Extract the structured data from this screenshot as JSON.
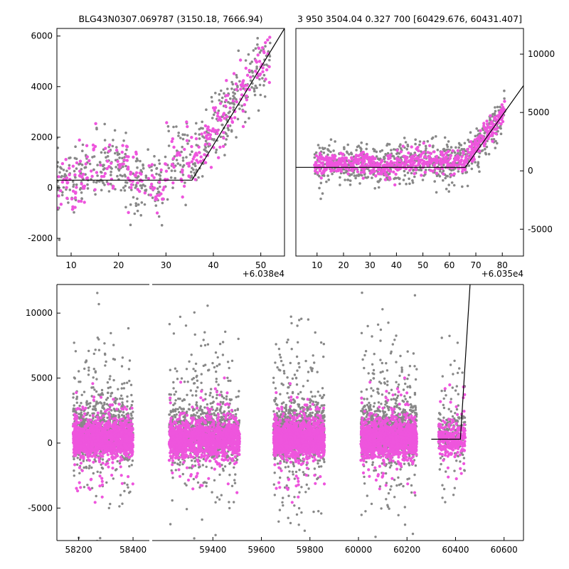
{
  "chart_data": [
    {
      "type": "scatter",
      "title": "BLG43N0307.069787 (3150.18, 7666.94)",
      "xlim": [
        7,
        55
      ],
      "ylim": [
        -2700,
        6300
      ],
      "x_offset_label": "+6.038e4",
      "xticks": [
        10,
        20,
        30,
        40,
        50
      ],
      "yticks": [
        -2000,
        0,
        2000,
        4000,
        6000
      ],
      "y_axis_side": "left",
      "series": [
        {
          "color": "#888888",
          "x_range": [
            7,
            52
          ],
          "points_note": "gray photometry"
        },
        {
          "color": "#ee55dd",
          "x_range": [
            7,
            52
          ],
          "points_note": "pink photometry"
        }
      ],
      "model_line": {
        "x": [
          7,
          35.5,
          55
        ],
        "y": [
          300,
          300,
          6300
        ]
      }
    },
    {
      "type": "scatter",
      "title": "3 950 3504.04 0.327 700 [60429.676, 60431.407]",
      "xlim": [
        2,
        88
      ],
      "ylim": [
        -7300,
        12200
      ],
      "x_offset_label": "+6.035e4",
      "xticks": [
        10,
        20,
        30,
        40,
        50,
        60,
        70,
        80
      ],
      "yticks": [
        -5000,
        0,
        5000,
        10000
      ],
      "y_axis_side": "right",
      "model_line": {
        "x": [
          2,
          66,
          88
        ],
        "y": [
          300,
          300,
          7300
        ]
      }
    },
    {
      "type": "scatter",
      "title": "",
      "xlim": [
        58120,
        60680
      ],
      "ylim": [
        -7500,
        12200
      ],
      "xticks": [
        58200,
        58400,
        59400,
        59600,
        59800,
        60000,
        60200,
        60400,
        60600
      ],
      "yticks": [
        -5000,
        0,
        5000,
        10000
      ],
      "y_axis_side": "left",
      "broken_axis": {
        "left_segment": [
          58120,
          58460
        ],
        "right_segment": [
          59150,
          60680
        ]
      },
      "seasons": [
        {
          "x_range": [
            58180,
            58400
          ]
        },
        {
          "x_range": [
            59220,
            59510
          ]
        },
        {
          "x_range": [
            59650,
            59860
          ]
        },
        {
          "x_range": [
            60010,
            60240
          ]
        },
        {
          "x_range": [
            60330,
            60440
          ]
        }
      ],
      "model_line": {
        "x": [
          60300,
          60420,
          60460
        ],
        "y": [
          300,
          300,
          12200
        ]
      }
    }
  ],
  "colors": {
    "gray": "#888888",
    "pink": "#ee55dd",
    "line": "#000000"
  }
}
